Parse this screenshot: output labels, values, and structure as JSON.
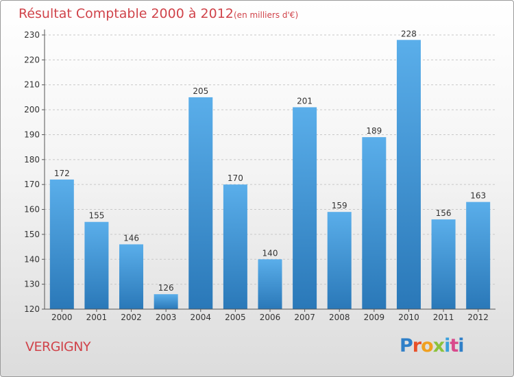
{
  "chart_data": {
    "type": "bar",
    "title": "Résultat Comptable 2000 à 2012",
    "subtitle": "(en milliers d'€)",
    "categories": [
      "2000",
      "2001",
      "2002",
      "2003",
      "2004",
      "2005",
      "2006",
      "2007",
      "2008",
      "2009",
      "2010",
      "2011",
      "2012"
    ],
    "values": [
      172,
      155,
      146,
      126,
      205,
      170,
      140,
      201,
      159,
      189,
      228,
      156,
      163
    ],
    "ylim": [
      120,
      230
    ],
    "yticks": [
      120,
      130,
      140,
      150,
      160,
      170,
      180,
      190,
      200,
      210,
      220,
      230
    ],
    "grid": true,
    "bar_color_top": "#5aaeea",
    "bar_color_bottom": "#2a78b8"
  },
  "location": "VERGIGNY",
  "brand": "Proxiti"
}
